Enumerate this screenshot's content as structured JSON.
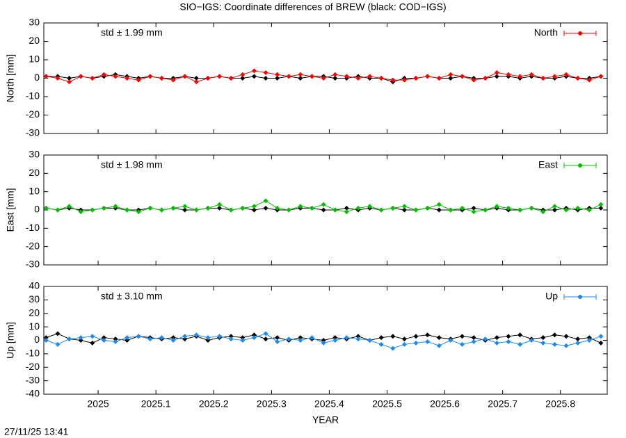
{
  "title": "SIO−IGS: Coordinate differences of BREW (black: COD−IGS)",
  "timestamp": "27/11/25 13:41",
  "chart_data": [
    {
      "type": "line",
      "ylabel": "North [mm]",
      "annotation": "std ± 1.99 mm",
      "legend": "top-right",
      "grid": false,
      "xlim": [
        2024.906,
        2025.881
      ],
      "xticks": [
        2025,
        2025.1,
        2025.2,
        2025.3,
        2025.4,
        2025.5,
        2025.6,
        2025.7,
        2025.8
      ],
      "ylim": [
        -30,
        30
      ],
      "yticks": [
        -30,
        -20,
        -10,
        0,
        10,
        20,
        30
      ],
      "x": [
        2024.91,
        2024.93,
        2024.95,
        2024.97,
        2024.99,
        2025.01,
        2025.03,
        2025.05,
        2025.07,
        2025.09,
        2025.11,
        2025.13,
        2025.15,
        2025.17,
        2025.19,
        2025.21,
        2025.23,
        2025.25,
        2025.27,
        2025.29,
        2025.31,
        2025.33,
        2025.35,
        2025.37,
        2025.39,
        2025.41,
        2025.43,
        2025.45,
        2025.47,
        2025.49,
        2025.51,
        2025.53,
        2025.55,
        2025.57,
        2025.59,
        2025.61,
        2025.63,
        2025.65,
        2025.67,
        2025.69,
        2025.71,
        2025.73,
        2025.75,
        2025.77,
        2025.79,
        2025.81,
        2025.83,
        2025.85,
        2025.87
      ],
      "series": [
        {
          "color": "#000000",
          "values": [
            1,
            1,
            0,
            1,
            0,
            1,
            2,
            1,
            0,
            1,
            0,
            0,
            1,
            0,
            0,
            1,
            0,
            0,
            1,
            0,
            0,
            1,
            0,
            1,
            1,
            0,
            0,
            1,
            0,
            0,
            -2,
            0,
            0,
            1,
            0,
            0,
            1,
            0,
            0,
            1,
            1,
            0,
            1,
            0,
            0,
            1,
            0,
            0,
            1
          ]
        },
        {
          "name": "North",
          "color": "#ff0000",
          "values": [
            1,
            0,
            -2,
            1,
            0,
            2,
            1,
            0,
            -1,
            1,
            0,
            -1,
            1,
            -2,
            0,
            1,
            0,
            2,
            4,
            3,
            2,
            1,
            2,
            1,
            0,
            2,
            1,
            0,
            1,
            0,
            -1,
            -1,
            0,
            1,
            0,
            2,
            1,
            -1,
            0,
            3,
            2,
            1,
            2,
            0,
            1,
            2,
            0,
            -1,
            1
          ]
        }
      ]
    },
    {
      "type": "line",
      "ylabel": "East [mm]",
      "annotation": "std ± 1.98 mm",
      "legend": "top-right",
      "grid": false,
      "xlim": [
        2024.906,
        2025.881
      ],
      "xticks": [
        2025,
        2025.1,
        2025.2,
        2025.3,
        2025.4,
        2025.5,
        2025.6,
        2025.7,
        2025.8
      ],
      "ylim": [
        -30,
        30
      ],
      "yticks": [
        -30,
        -20,
        -10,
        0,
        10,
        20,
        30
      ],
      "x": [
        2024.91,
        2024.93,
        2024.95,
        2024.97,
        2024.99,
        2025.01,
        2025.03,
        2025.05,
        2025.07,
        2025.09,
        2025.11,
        2025.13,
        2025.15,
        2025.17,
        2025.19,
        2025.21,
        2025.23,
        2025.25,
        2025.27,
        2025.29,
        2025.31,
        2025.33,
        2025.35,
        2025.37,
        2025.39,
        2025.41,
        2025.43,
        2025.45,
        2025.47,
        2025.49,
        2025.51,
        2025.53,
        2025.55,
        2025.57,
        2025.59,
        2025.61,
        2025.63,
        2025.65,
        2025.67,
        2025.69,
        2025.71,
        2025.73,
        2025.75,
        2025.77,
        2025.79,
        2025.81,
        2025.83,
        2025.85,
        2025.87
      ],
      "series": [
        {
          "color": "#000000",
          "values": [
            1,
            0,
            1,
            0,
            0,
            1,
            1,
            0,
            0,
            1,
            0,
            1,
            0,
            0,
            1,
            1,
            0,
            1,
            0,
            1,
            0,
            0,
            1,
            1,
            0,
            0,
            1,
            0,
            1,
            0,
            1,
            0,
            0,
            1,
            0,
            0,
            0,
            1,
            0,
            1,
            0,
            0,
            1,
            0,
            0,
            1,
            0,
            1,
            1
          ]
        },
        {
          "name": "East",
          "color": "#00c000",
          "values": [
            1,
            0,
            2,
            -1,
            0,
            1,
            2,
            0,
            -1,
            1,
            0,
            1,
            2,
            0,
            1,
            3,
            0,
            1,
            2,
            5,
            1,
            0,
            2,
            1,
            3,
            0,
            -1,
            1,
            2,
            0,
            1,
            2,
            0,
            1,
            3,
            0,
            1,
            -1,
            0,
            2,
            1,
            0,
            1,
            -1,
            2,
            0,
            1,
            0,
            3
          ]
        }
      ]
    },
    {
      "type": "line",
      "ylabel": "Up [mm]",
      "annotation": "std ± 3.10 mm",
      "legend": "top-right",
      "grid": false,
      "xlabel": "YEAR",
      "xlim": [
        2024.906,
        2025.881
      ],
      "xticks": [
        2025,
        2025.1,
        2025.2,
        2025.3,
        2025.4,
        2025.5,
        2025.6,
        2025.7,
        2025.8
      ],
      "ylim": [
        -40,
        40
      ],
      "yticks": [
        -40,
        -30,
        -20,
        -10,
        0,
        10,
        20,
        30,
        40
      ],
      "x": [
        2024.91,
        2024.93,
        2024.95,
        2024.97,
        2024.99,
        2025.01,
        2025.03,
        2025.05,
        2025.07,
        2025.09,
        2025.11,
        2025.13,
        2025.15,
        2025.17,
        2025.19,
        2025.21,
        2025.23,
        2025.25,
        2025.27,
        2025.29,
        2025.31,
        2025.33,
        2025.35,
        2025.37,
        2025.39,
        2025.41,
        2025.43,
        2025.45,
        2025.47,
        2025.49,
        2025.51,
        2025.53,
        2025.55,
        2025.57,
        2025.59,
        2025.61,
        2025.63,
        2025.65,
        2025.67,
        2025.69,
        2025.71,
        2025.73,
        2025.75,
        2025.77,
        2025.79,
        2025.81,
        2025.83,
        2025.85,
        2025.87
      ],
      "series": [
        {
          "color": "#000000",
          "values": [
            2,
            5,
            1,
            0,
            -2,
            2,
            1,
            0,
            3,
            2,
            1,
            2,
            1,
            3,
            0,
            2,
            3,
            2,
            4,
            1,
            2,
            0,
            2,
            1,
            0,
            2,
            1,
            3,
            0,
            2,
            3,
            1,
            3,
            4,
            2,
            1,
            3,
            2,
            0,
            2,
            3,
            4,
            1,
            2,
            4,
            3,
            1,
            2,
            -2
          ]
        },
        {
          "name": "Up",
          "color": "#1c8cf0",
          "values": [
            0,
            -3,
            1,
            2,
            3,
            0,
            -1,
            2,
            3,
            1,
            2,
            0,
            3,
            4,
            2,
            3,
            1,
            0,
            2,
            5,
            -1,
            1,
            0,
            2,
            -2,
            0,
            2,
            1,
            0,
            -3,
            -6,
            -3,
            -2,
            -1,
            -4,
            0,
            -3,
            -1,
            1,
            -2,
            -1,
            -3,
            0,
            -2,
            -3,
            -4,
            -2,
            0,
            3
          ]
        }
      ]
    }
  ]
}
